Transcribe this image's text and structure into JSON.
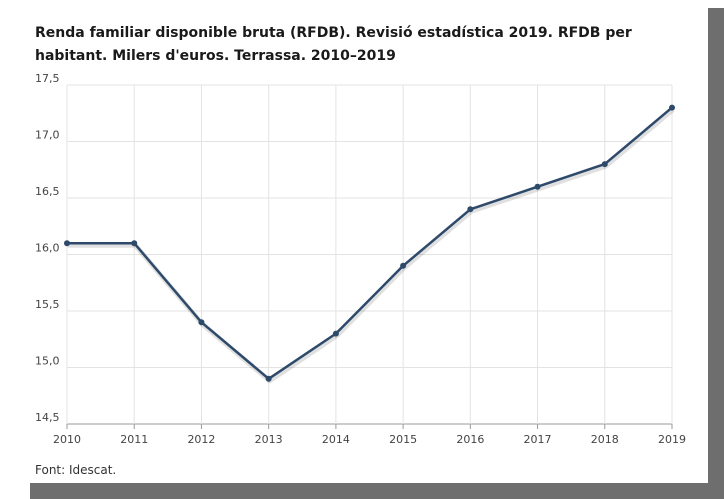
{
  "title": "Renda familiar disponible bruta (RFDB). Revisió estadística 2019. RFDB per habitant. Milers d'euros. Terrassa. 2010–2019",
  "source": "Font: Idescat.",
  "colors": {
    "line": "#2e4a6b",
    "grid": "#e3e3e3",
    "axis": "#999999"
  },
  "chart_data": {
    "type": "line",
    "title": "Renda familiar disponible bruta (RFDB). Revisió estadística 2019. RFDB per habitant. Milers d'euros. Terrassa. 2010–2019",
    "xlabel": "",
    "ylabel": "",
    "categories": [
      "2010",
      "2011",
      "2012",
      "2013",
      "2014",
      "2015",
      "2016",
      "2017",
      "2018",
      "2019"
    ],
    "values": [
      16.1,
      16.1,
      15.4,
      14.9,
      15.3,
      15.9,
      16.4,
      16.6,
      16.8,
      17.3
    ],
    "ylim": [
      14.5,
      17.5
    ],
    "yticks": [
      "14,5",
      "15,0",
      "15,5",
      "16,0",
      "16,5",
      "17,0",
      "17,5"
    ],
    "grid": true,
    "legend": "none"
  }
}
